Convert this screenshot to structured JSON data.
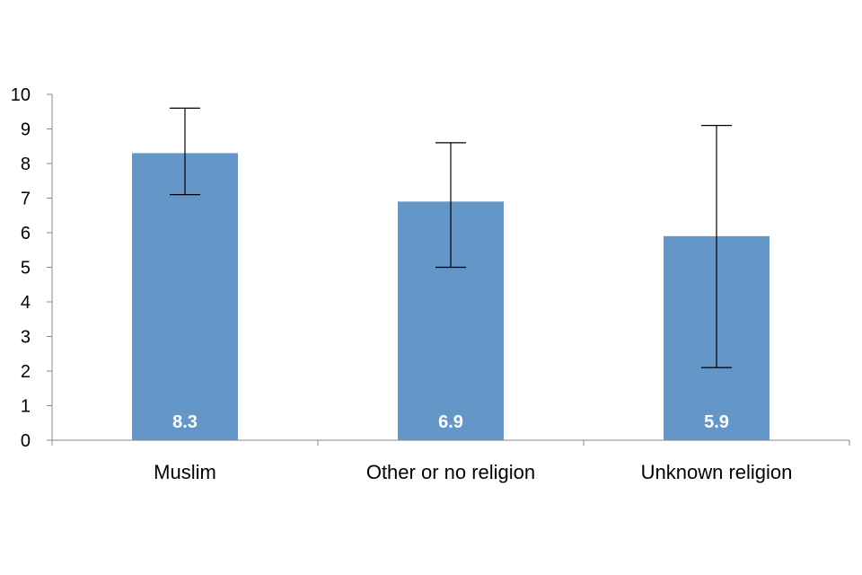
{
  "chart_data": {
    "type": "bar",
    "title": "",
    "xlabel": "",
    "ylabel": "",
    "categories": [
      "Muslim",
      "Other or no religion",
      "Unknown religion"
    ],
    "values": [
      8.3,
      6.9,
      5.9
    ],
    "data_labels": [
      "8.3",
      "6.9",
      "5.9"
    ],
    "error_bars": [
      {
        "low": 7.1,
        "high": 9.6
      },
      {
        "low": 5.0,
        "high": 8.6
      },
      {
        "low": 2.1,
        "high": 9.1
      }
    ],
    "ylim": [
      0,
      10
    ],
    "yticks": [
      0,
      1,
      2,
      3,
      4,
      5,
      6,
      7,
      8,
      9,
      10
    ],
    "ytick_labels": [
      "0",
      "1",
      "2",
      "3",
      "4",
      "5",
      "6",
      "7",
      "8",
      "9",
      "10"
    ],
    "grid": false,
    "legend": "none",
    "colors": {
      "bar": "#6496c8",
      "axis": "#898989",
      "error_bar": "#000000",
      "data_label": "#ffffff"
    }
  }
}
